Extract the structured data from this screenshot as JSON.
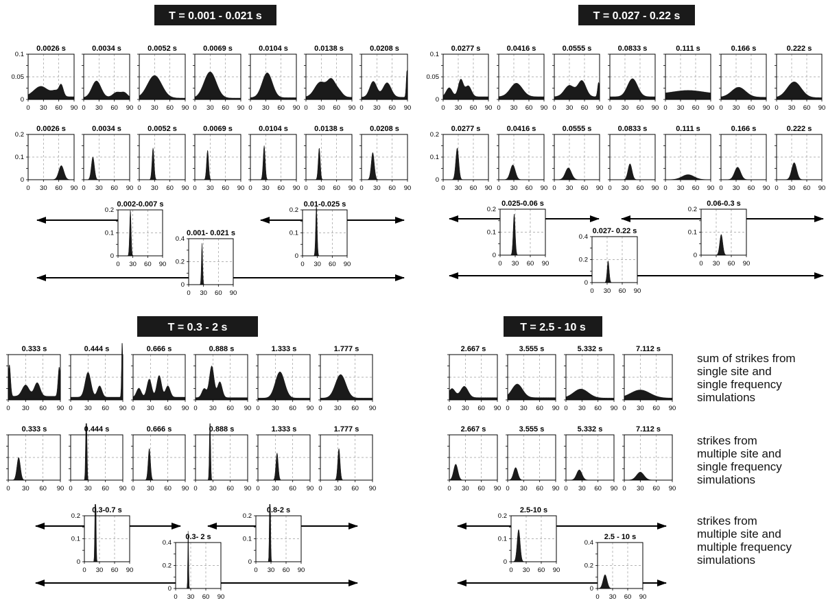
{
  "groups": [
    {
      "title": "T = 0.001 - 0.021 s",
      "yticks_top": [
        "0.1",
        "0.05",
        "0"
      ],
      "yticks_mid": [
        "0.2",
        "0.1",
        "0"
      ],
      "yticks_bottom": [
        "0.2",
        "0.1",
        "0"
      ],
      "yticks_final": [
        "0.4",
        "0.2",
        "0"
      ],
      "xticks": [
        "0",
        "30",
        "60",
        "90"
      ],
      "top_labels": [
        "0.0026 s",
        "0.0034 s",
        "0.0052 s",
        "0.0069 s",
        "0.0104 s",
        "0.0138 s",
        "0.0208 s"
      ],
      "mid_labels": [
        "0.0026 s",
        "0.0034 s",
        "0.0052 s",
        "0.0069 s",
        "0.0104 s",
        "0.0138 s",
        "0.0208 s"
      ],
      "band_labels": [
        "0.002-0.007 s",
        "0.01-0.025 s"
      ],
      "combined_label": "0.001- 0.021 s"
    },
    {
      "title": "T = 0.027 - 0.22 s",
      "yticks_top": [
        "0.1",
        "0.05",
        "0"
      ],
      "yticks_mid": [
        "0.2",
        "0.1",
        "0"
      ],
      "yticks_bottom": [
        "0.2",
        "0.1",
        "0"
      ],
      "yticks_final": [
        "0.4",
        "0.2",
        "0"
      ],
      "xticks": [
        "0",
        "30",
        "60",
        "90"
      ],
      "top_labels": [
        "0.0277 s",
        "0.0416 s",
        "0.0555 s",
        "0.0833 s",
        "0.111 s",
        "0.166 s",
        "0.222 s"
      ],
      "mid_labels": [
        "0.0277 s",
        "0.0416 s",
        "0.0555 s",
        "0.0833 s",
        "0.111 s",
        "0.166 s",
        "0.222 s"
      ],
      "band_labels": [
        "0.025-0.06 s",
        "0.06-0.3 s"
      ],
      "combined_label": "0.027- 0.22 s"
    },
    {
      "title": "T = 0.3 - 2 s",
      "yticks_top": [
        "",
        "",
        ""
      ],
      "yticks_mid": [
        "",
        "",
        ""
      ],
      "yticks_bottom": [
        "0.2",
        "0.1",
        "0"
      ],
      "yticks_final": [
        "0.4",
        "0.2",
        "0"
      ],
      "xticks": [
        "0",
        "30",
        "60",
        "90"
      ],
      "top_labels": [
        "0.333 s",
        "0.444 s",
        "0.666 s",
        "0.888 s",
        "1.333 s",
        "1.777 s"
      ],
      "mid_labels": [
        "0.333 s",
        "0.444 s",
        "0.666 s",
        "0.888 s",
        "1.333 s",
        "1.777 s"
      ],
      "band_labels": [
        "0.3-0.7 s",
        "0.8-2 s"
      ],
      "combined_label": "0.3- 2 s"
    },
    {
      "title": "T = 2.5 - 10 s",
      "yticks_top": [
        "",
        "",
        ""
      ],
      "yticks_mid": [
        "",
        "",
        ""
      ],
      "yticks_bottom": [
        "0.2",
        "0.1",
        "0"
      ],
      "yticks_final": [
        "0.4",
        "0.2",
        "0"
      ],
      "xticks": [
        "0",
        "30",
        "60",
        "90"
      ],
      "top_labels": [
        "2.667 s",
        "3.555 s",
        "5.332 s",
        "7.112 s"
      ],
      "mid_labels": [
        "2.667 s",
        "3.555 s",
        "5.332 s",
        "7.112 s"
      ],
      "band_labels": [
        "2.5-10 s"
      ],
      "combined_label": "2.5 - 10 s"
    }
  ],
  "legend": [
    "sum of strikes from\nsingle site and\nsingle frequency\nsimulations",
    "strikes from\nmultiple site and\nsingle frequency\nsimulations",
    "strikes from\nmultiple site and\nmultiple frequency\nsimulations"
  ],
  "chart_data": {
    "type": "area",
    "xlim": [
      0,
      90
    ],
    "xlabel": "",
    "ylabel": "",
    "grid": true,
    "style": {
      "fill": "#1a1a1a",
      "frame": "#000000",
      "grid": "#9a9a9a",
      "title_bg": "#1a1a1a",
      "title_fg": "#ffffff",
      "arrow": "#000000"
    },
    "rows": {
      "single_site_single_frequency": {
        "ylim": [
          0,
          0.1
        ],
        "groups": [
          [
            {
              "label": "0.0026 s",
              "peaks": [
                [
                  25,
                  0.023,
                  14
                ],
                [
                  65,
                  0.022,
                  4
                ],
                [
                  55,
                  0.012,
                  8
                ]
              ],
              "base": 0.006
            },
            {
              "label": "0.0034 s",
              "peaks": [
                [
                  25,
                  0.037,
                  9
                ],
                [
                  65,
                  0.012,
                  8
                ],
                [
                  80,
                  0.01,
                  6
                ]
              ],
              "base": 0.004
            },
            {
              "label": "0.0052 s",
              "peaks": [
                [
                  30,
                  0.05,
                  14
                ]
              ],
              "base": 0.003
            },
            {
              "label": "0.0069 s",
              "peaks": [
                [
                  30,
                  0.058,
                  12
                ]
              ],
              "base": 0.003
            },
            {
              "label": "0.0104 s",
              "peaks": [
                [
                  33,
                  0.055,
                  10
                ]
              ],
              "base": 0.004
            },
            {
              "label": "0.0138 s",
              "peaks": [
                [
                  28,
                  0.033,
                  11
                ],
                [
                  50,
                  0.036,
                  8
                ],
                [
                  65,
                  0.012,
                  7
                ]
              ],
              "base": 0.005
            },
            {
              "label": "0.0208 s",
              "peaks": [
                [
                  23,
                  0.035,
                  7
                ],
                [
                  50,
                  0.032,
                  8
                ],
                [
                  89,
                  0.06,
                  1.5
                ]
              ],
              "base": 0.005
            }
          ],
          [
            {
              "label": "0.0277 s",
              "peaks": [
                [
                  12,
                  0.02,
                  6
                ],
                [
                  35,
                  0.038,
                  5
                ],
                [
                  50,
                  0.024,
                  6
                ]
              ],
              "base": 0.006
            },
            {
              "label": "0.0416 s",
              "peaks": [
                [
                  35,
                  0.03,
                  12
                ]
              ],
              "base": 0.006
            },
            {
              "label": "0.0555 s",
              "peaks": [
                [
                  30,
                  0.025,
                  10
                ],
                [
                  55,
                  0.035,
                  8
                ],
                [
                  88,
                  0.032,
                  2
                ]
              ],
              "base": 0.006
            },
            {
              "label": "0.0833 s",
              "peaks": [
                [
                  45,
                  0.04,
                  10
                ]
              ],
              "base": 0.006
            },
            {
              "label": "0.111 s",
              "peaks": [
                [
                  45,
                  0.008,
                  30
                ]
              ],
              "base": 0.012
            },
            {
              "label": "0.166 s",
              "peaks": [
                [
                  35,
                  0.022,
                  14
                ]
              ],
              "base": 0.005
            },
            {
              "label": "0.222 s",
              "peaks": [
                [
                  35,
                  0.035,
                  14
                ]
              ],
              "base": 0.004
            }
          ],
          [
            {
              "label": "0.333 s",
              "peaks": [
                [
                  2,
                  0.07,
                  2
                ],
                [
                  30,
                  0.025,
                  6
                ],
                [
                  50,
                  0.03,
                  5
                ],
                [
                  88,
                  0.065,
                  2
                ]
              ],
              "base": 0.008
            },
            {
              "label": "0.444 s",
              "peaks": [
                [
                  30,
                  0.055,
                  5
                ],
                [
                  50,
                  0.025,
                  4
                ],
                [
                  89,
                  0.14,
                  1
                ]
              ],
              "base": 0.006
            },
            {
              "label": "0.666 s",
              "peaks": [
                [
                  10,
                  0.02,
                  4
                ],
                [
                  28,
                  0.04,
                  4
                ],
                [
                  45,
                  0.048,
                  4
                ],
                [
                  60,
                  0.025,
                  4
                ]
              ],
              "base": 0.006
            },
            {
              "label": "0.888 s",
              "peaks": [
                [
                  15,
                  0.02,
                  4
                ],
                [
                  28,
                  0.07,
                  4
                ],
                [
                  42,
                  0.035,
                  4
                ]
              ],
              "base": 0.005
            },
            {
              "label": "1.333 s",
              "peaks": [
                [
                  38,
                  0.058,
                  8
                ]
              ],
              "base": 0.004
            },
            {
              "label": "1.777 s",
              "peaks": [
                [
                  35,
                  0.052,
                  9
                ]
              ],
              "base": 0.004
            }
          ],
          [
            {
              "label": "2.667 s",
              "peaks": [
                [
                  5,
                  0.02,
                  6
                ],
                [
                  28,
                  0.025,
                  7
                ]
              ],
              "base": 0.005
            },
            {
              "label": "3.555 s",
              "peaks": [
                [
                  18,
                  0.03,
                  10
                ]
              ],
              "base": 0.005
            },
            {
              "label": "5.332 s",
              "peaks": [
                [
                  28,
                  0.02,
                  14
                ]
              ],
              "base": 0.004
            },
            {
              "label": "7.112 s",
              "peaks": [
                [
                  30,
                  0.018,
                  18
                ]
              ],
              "base": 0.004
            }
          ]
        ]
      },
      "multiple_site_single_frequency": {
        "ylim": [
          0,
          0.2
        ],
        "groups": [
          [
            [
              65,
              0.062,
              5
            ],
            [
              18,
              0.1,
              3
            ],
            [
              27,
              0.14,
              2
            ],
            [
              25,
              0.13,
              2
            ],
            [
              27,
              0.15,
              2
            ],
            [
              26,
              0.14,
              2
            ],
            [
              22,
              0.12,
              3
            ]
          ],
          [
            [
              28,
              0.14,
              3
            ],
            [
              28,
              0.065,
              5
            ],
            [
              28,
              0.052,
              6
            ],
            [
              40,
              0.07,
              4
            ],
            [
              45,
              0.022,
              12
            ],
            [
              33,
              0.055,
              6
            ],
            [
              35,
              0.075,
              5
            ]
          ],
          [
            [
              18,
              0.1,
              3
            ],
            [
              27,
              0.42,
              1
            ],
            [
              28,
              0.14,
              2
            ],
            [
              25,
              0.3,
              1
            ],
            [
              33,
              0.12,
              2
            ],
            [
              32,
              0.14,
              2
            ]
          ],
          [
            [
              12,
              0.07,
              4
            ],
            [
              15,
              0.055,
              4
            ],
            [
              25,
              0.045,
              5
            ],
            [
              30,
              0.035,
              7
            ]
          ]
        ]
      },
      "multiple_site_multiple_frequency": {
        "ylim": [
          0,
          0.2
        ],
        "bands": [
          [
            {
              "label": "0.002-0.007 s",
              "peak": [
                25,
                0.2,
                1.5
              ]
            },
            {
              "label": "0.01-0.025 s",
              "peak": [
                28,
                0.22,
                1.5
              ]
            }
          ],
          [
            {
              "label": "0.025-0.06 s",
              "peak": [
                28,
                0.18,
                2
              ]
            },
            {
              "label": "0.06-0.3 s",
              "peak": [
                40,
                0.09,
                3
              ]
            }
          ],
          [
            {
              "label": "0.3-0.7 s",
              "peak": [
                22,
                0.5,
                1
              ]
            },
            {
              "label": "0.8-2 s",
              "peak": [
                28,
                0.45,
                1
              ]
            }
          ],
          [
            {
              "label": "2.5-10 s",
              "peak": [
                15,
                0.14,
                3
              ]
            }
          ]
        ]
      },
      "combined": {
        "ylim": [
          0,
          0.4
        ],
        "groups": [
          {
            "label": "0.001- 0.021 s",
            "peak": [
              27,
              0.36,
              1.2
            ]
          },
          {
            "label": "0.027- 0.22 s",
            "peak": [
              32,
              0.19,
              2
            ]
          },
          {
            "label": "0.3- 2 s",
            "peak": [
              25,
              0.55,
              0.8
            ]
          },
          {
            "label": "2.5 - 10 s",
            "peak": [
              15,
              0.12,
              4
            ]
          }
        ]
      }
    }
  }
}
